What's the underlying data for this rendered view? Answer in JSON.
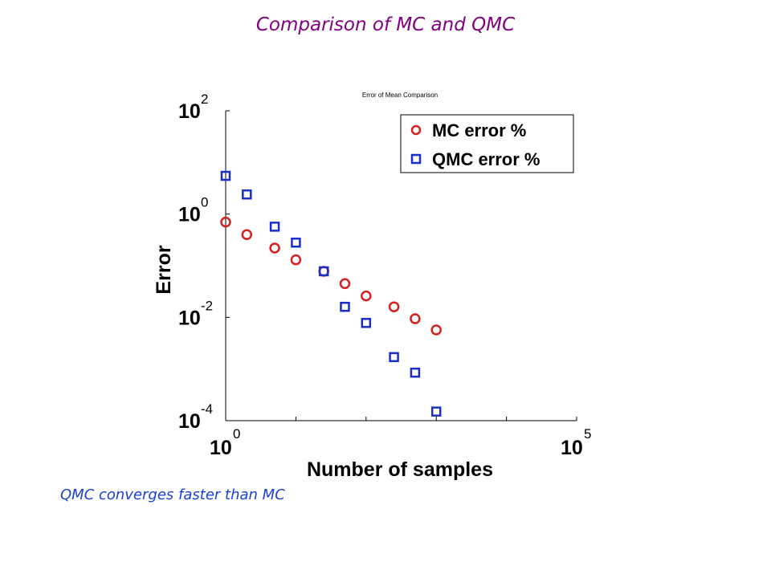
{
  "slide": {
    "title": "Comparison of MC and QMC",
    "caption": "QMC converges faster than MC"
  },
  "chart_data": {
    "type": "scatter",
    "title": "Error of Mean Comparison",
    "xlabel": "Number of samples",
    "ylabel": "Error",
    "xscale": "log",
    "yscale": "log",
    "xlim": [
      1,
      100000
    ],
    "ylim": [
      0.0001,
      100
    ],
    "xticks": [
      {
        "base": "10",
        "exp": "0"
      },
      {
        "base": "10",
        "exp": "5"
      }
    ],
    "yticks": [
      {
        "base": "10",
        "exp": "2"
      },
      {
        "base": "10",
        "exp": "0"
      },
      {
        "base": "10",
        "exp": "-2"
      },
      {
        "base": "10",
        "exp": "-4"
      }
    ],
    "grid": false,
    "legend_position": "top-right",
    "series": [
      {
        "name": "MC error %",
        "marker": "circle",
        "color": "#d42020",
        "x": [
          1,
          2,
          5,
          10,
          25,
          50,
          100,
          250,
          500,
          1000
        ],
        "y": [
          0.7,
          0.4,
          0.22,
          0.13,
          0.078,
          0.045,
          0.026,
          0.016,
          0.0094,
          0.0057
        ]
      },
      {
        "name": "QMC error %",
        "marker": "square",
        "color": "#1a2fc9",
        "x": [
          1,
          2,
          5,
          10,
          25,
          50,
          100,
          250,
          500,
          1000
        ],
        "y": [
          5.5,
          2.4,
          0.57,
          0.28,
          0.078,
          0.016,
          0.0078,
          0.0017,
          0.00085,
          0.00015
        ]
      }
    ]
  }
}
